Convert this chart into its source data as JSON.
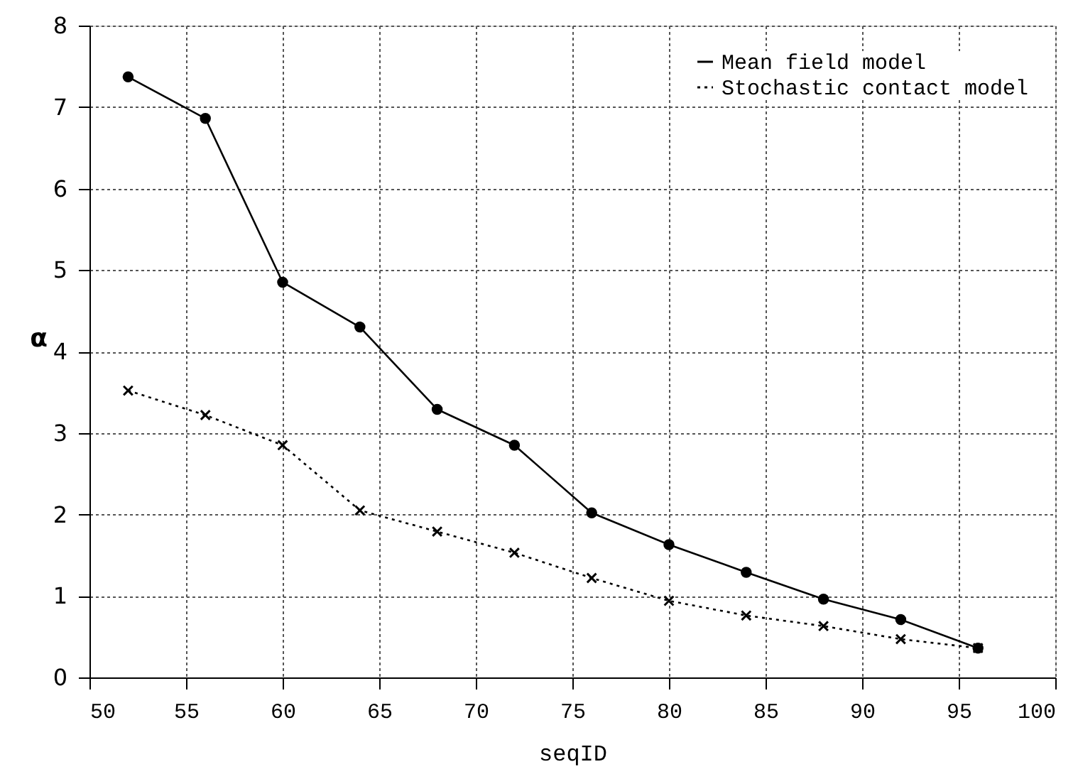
{
  "chart_data": {
    "type": "line",
    "xlabel": "seqID",
    "ylabel": "α",
    "xlim": [
      50,
      100
    ],
    "ylim": [
      0,
      8
    ],
    "xticks": [
      50,
      55,
      60,
      65,
      70,
      75,
      80,
      85,
      90,
      95,
      100
    ],
    "yticks": [
      0,
      1,
      2,
      3,
      4,
      5,
      6,
      7,
      8
    ],
    "grid": true,
    "legend": "top right",
    "x": [
      52,
      56,
      60,
      64,
      68,
      72,
      76,
      80,
      84,
      88,
      92,
      96
    ],
    "series": [
      {
        "name": "Mean field model",
        "color": "#000000",
        "marker": "circle",
        "line_style": "solid",
        "values": [
          7.37,
          6.86,
          4.85,
          4.3,
          3.29,
          2.85,
          2.02,
          1.63,
          1.29,
          0.96,
          0.71,
          0.36
        ]
      },
      {
        "name": "Stochastic contact model",
        "color": "#000000",
        "marker": "cross",
        "line_style": "dotted",
        "values": [
          3.52,
          3.22,
          2.85,
          2.05,
          1.79,
          1.53,
          1.22,
          0.94,
          0.76,
          0.63,
          0.47,
          0.36
        ]
      }
    ]
  }
}
